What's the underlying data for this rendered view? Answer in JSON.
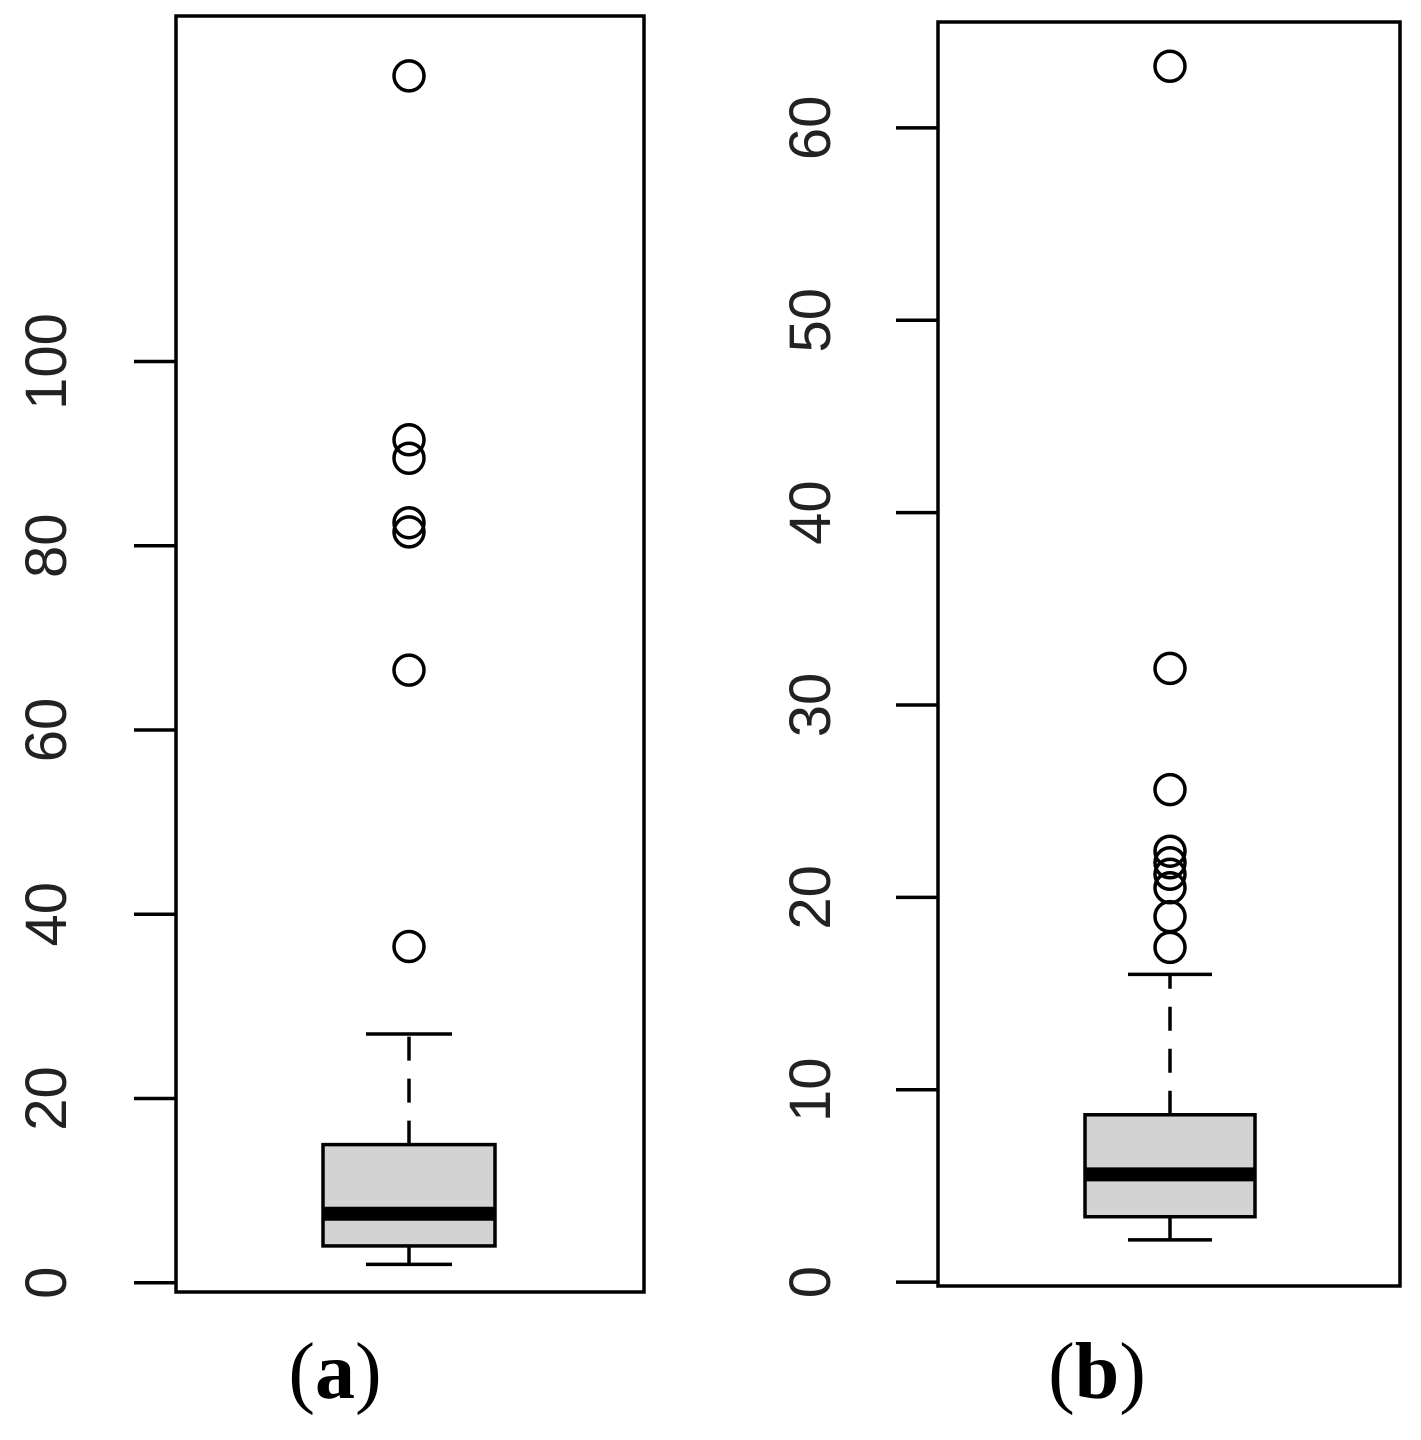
{
  "chart_data": [
    {
      "type": "box",
      "panel_label": "a",
      "yticks": [
        0,
        20,
        40,
        60,
        80,
        100
      ],
      "ylim": [
        -1,
        137.5
      ],
      "box": {
        "whisker_low": 2,
        "q1": 4,
        "median": 7.5,
        "q3": 15,
        "whisker_high": 27
      },
      "outliers": [
        36.5,
        66.5,
        81.5,
        82.5,
        89.5,
        91.5,
        131
      ],
      "colors": {
        "box_fill": "#d3d3d3",
        "stroke": "#000000"
      }
    },
    {
      "type": "box",
      "panel_label": "b",
      "yticks": [
        0,
        10,
        20,
        30,
        40,
        50,
        60
      ],
      "ylim": [
        -0.2,
        65.5
      ],
      "box": {
        "whisker_low": 2.2,
        "q1": 3.4,
        "median": 5.6,
        "q3": 8.7,
        "whisker_high": 16
      },
      "outliers": [
        17.4,
        19.0,
        20.5,
        21.2,
        21.8,
        22.4,
        25.6,
        31.9,
        63.2
      ],
      "colors": {
        "box_fill": "#d3d3d3",
        "stroke": "#000000"
      }
    }
  ]
}
